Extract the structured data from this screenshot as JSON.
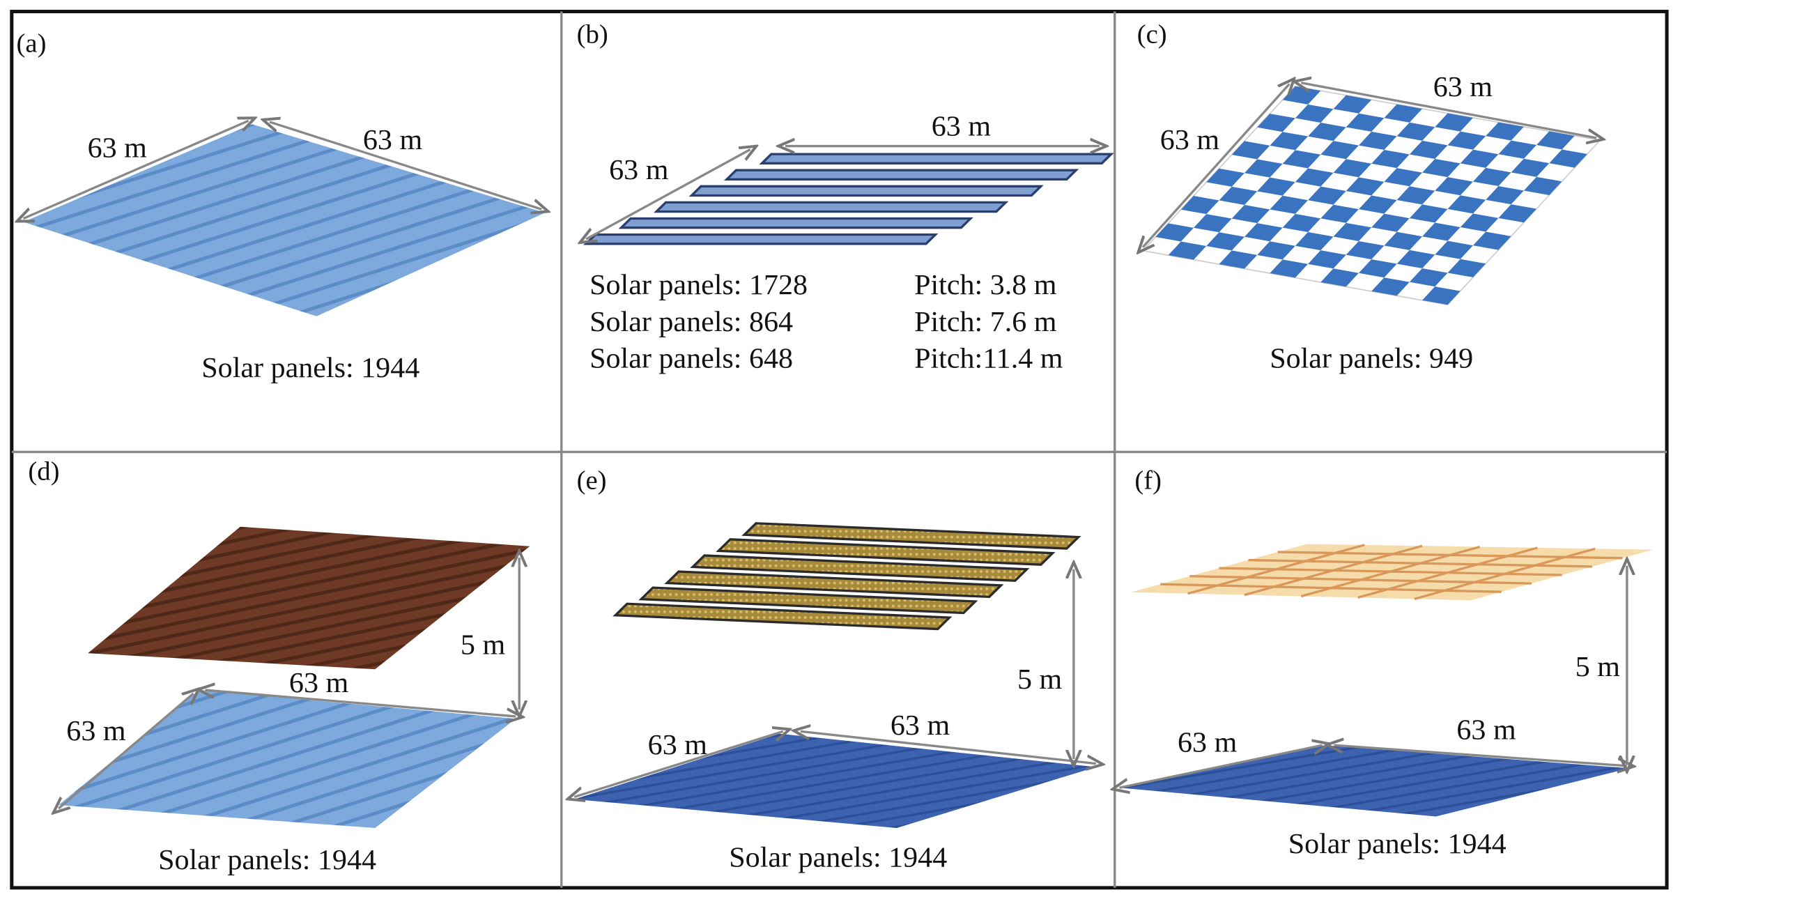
{
  "panels": [
    {
      "label": "(a)",
      "dimension_labels": [
        "63 m",
        "63 m"
      ],
      "caption": "Solar panels: 1944"
    },
    {
      "label": "(b)",
      "dimension_labels": [
        "63 m",
        "63 m"
      ],
      "configurations": [
        {
          "panels": "Solar panels: 1728",
          "pitch": "Pitch: 3.8 m"
        },
        {
          "panels": "Solar panels: 864",
          "pitch": "Pitch: 7.6 m"
        },
        {
          "panels": "Solar panels: 648",
          "pitch": "Pitch:11.4 m"
        }
      ]
    },
    {
      "label": "(c)",
      "dimension_labels": [
        "63 m",
        "63 m"
      ],
      "caption": "Solar panels: 949"
    },
    {
      "label": "(d)",
      "dimension_labels": [
        "63 m",
        "63 m"
      ],
      "height_label": "5 m",
      "caption": "Solar panels: 1944"
    },
    {
      "label": "(e)",
      "dimension_labels": [
        "63 m",
        "63 m"
      ],
      "height_label": "5 m",
      "caption": "Solar panels: 1944"
    },
    {
      "label": "(f)",
      "dimension_labels": [
        "63 m",
        "63 m"
      ],
      "height_label": "5 m",
      "caption": "Solar panels: 1944"
    }
  ]
}
